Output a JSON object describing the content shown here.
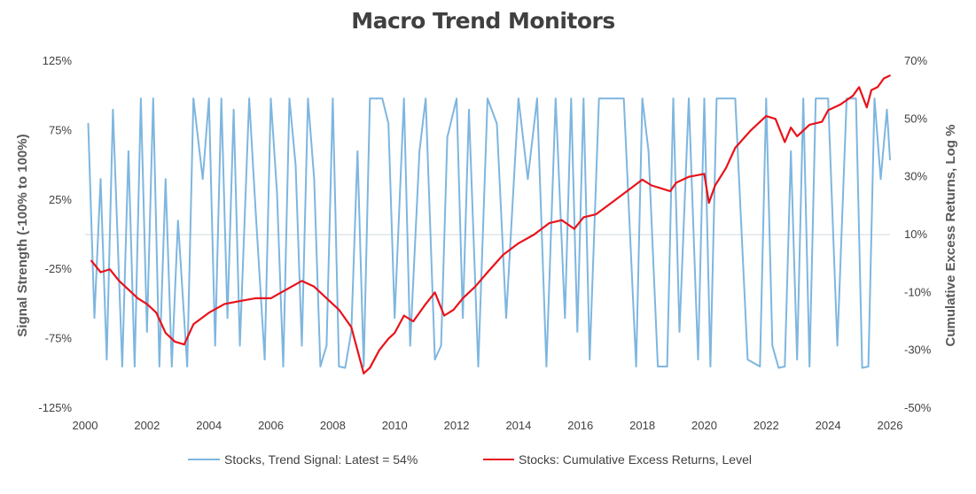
{
  "chart_data": {
    "type": "line",
    "title": "Macro Trend Monitors",
    "left_axis": {
      "label": "Signal Strength (-100% to 100%)",
      "ticks": [
        "125%",
        "75%",
        "25%",
        "-25%",
        "-75%",
        "-125%"
      ],
      "tick_values": [
        125,
        75,
        25,
        -25,
        -75,
        -125
      ],
      "range": [
        -125,
        125
      ]
    },
    "right_axis": {
      "label": "Cumulative Excess Returns, Log %",
      "ticks": [
        "70%",
        "50%",
        "30%",
        "10%",
        "-10%",
        "-30%",
        "-50%"
      ],
      "tick_values": [
        70,
        50,
        30,
        10,
        -10,
        -30,
        -50
      ],
      "range": [
        -50,
        70
      ]
    },
    "x_axis": {
      "ticks": [
        "2000",
        "2002",
        "2004",
        "2006",
        "2008",
        "2010",
        "2012",
        "2014",
        "2016",
        "2018",
        "2020",
        "2022",
        "2024",
        "2026"
      ],
      "tick_values": [
        2000,
        2002,
        2004,
        2006,
        2008,
        2010,
        2012,
        2014,
        2016,
        2018,
        2020,
        2022,
        2024,
        2026
      ],
      "range": [
        2000,
        2026
      ]
    },
    "grid": false,
    "legend_position": "bottom",
    "series": [
      {
        "name": "Stocks, Trend Signal: Latest = 54%",
        "axis": "left",
        "color": "#7EB6DF",
        "x": [
          2000.1,
          2000.3,
          2000.5,
          2000.7,
          2000.9,
          2001.2,
          2001.4,
          2001.6,
          2001.8,
          2002.0,
          2002.2,
          2002.4,
          2002.6,
          2002.8,
          2003.0,
          2003.3,
          2003.5,
          2003.8,
          2004.0,
          2004.2,
          2004.4,
          2004.6,
          2004.8,
          2005.0,
          2005.3,
          2005.5,
          2005.8,
          2006.0,
          2006.2,
          2006.4,
          2006.6,
          2006.8,
          2007.0,
          2007.2,
          2007.4,
          2007.6,
          2007.8,
          2008.0,
          2008.2,
          2008.4,
          2008.6,
          2008.8,
          2009.0,
          2009.2,
          2009.4,
          2009.6,
          2009.8,
          2010.0,
          2010.3,
          2010.5,
          2010.8,
          2011.0,
          2011.3,
          2011.5,
          2011.7,
          2012.0,
          2012.2,
          2012.4,
          2012.7,
          2013.0,
          2013.3,
          2013.6,
          2014.0,
          2014.3,
          2014.6,
          2014.9,
          2015.2,
          2015.5,
          2015.7,
          2015.9,
          2016.1,
          2016.3,
          2016.6,
          2017.0,
          2017.4,
          2017.8,
          2018.0,
          2018.2,
          2018.5,
          2018.8,
          2019.0,
          2019.2,
          2019.5,
          2019.8,
          2020.0,
          2020.2,
          2020.4,
          2020.7,
          2021.0,
          2021.4,
          2021.8,
          2022.0,
          2022.2,
          2022.4,
          2022.6,
          2022.8,
          2023.0,
          2023.2,
          2023.4,
          2023.6,
          2023.8,
          2024.0,
          2024.3,
          2024.6,
          2024.9,
          2025.1,
          2025.3,
          2025.5,
          2025.7,
          2025.9,
          2026.0
        ],
        "values": [
          80,
          -60,
          40,
          -90,
          90,
          -95,
          60,
          -95,
          98,
          -70,
          98,
          -95,
          40,
          -95,
          10,
          -95,
          98,
          40,
          98,
          -80,
          98,
          -60,
          90,
          -80,
          98,
          20,
          -90,
          98,
          30,
          -95,
          98,
          50,
          -80,
          98,
          40,
          -95,
          -80,
          98,
          -95,
          -96,
          -70,
          60,
          -95,
          98,
          98,
          98,
          80,
          -60,
          98,
          -80,
          60,
          98,
          -90,
          -80,
          70,
          98,
          -60,
          90,
          -95,
          98,
          80,
          -60,
          98,
          40,
          98,
          -95,
          98,
          -60,
          98,
          -70,
          98,
          -90,
          98,
          98,
          98,
          -95,
          98,
          60,
          -95,
          -95,
          98,
          -70,
          98,
          -90,
          98,
          -95,
          98,
          98,
          98,
          -90,
          -95,
          98,
          -80,
          -96,
          -95,
          60,
          -90,
          98,
          -95,
          98,
          98,
          98,
          -80,
          98,
          98,
          -96,
          -95,
          98,
          40,
          90,
          54
        ]
      },
      {
        "name": "Stocks:  Cumulative Excess Returns, Level",
        "axis": "right",
        "color": "#E8131B",
        "x": [
          2000.2,
          2000.5,
          2000.8,
          2001.1,
          2001.4,
          2001.7,
          2002.0,
          2002.3,
          2002.6,
          2002.9,
          2003.2,
          2003.5,
          2004.0,
          2004.5,
          2005.0,
          2005.5,
          2006.0,
          2006.5,
          2007.0,
          2007.4,
          2007.8,
          2008.2,
          2008.6,
          2009.0,
          2009.2,
          2009.5,
          2009.8,
          2010.0,
          2010.3,
          2010.6,
          2011.0,
          2011.3,
          2011.6,
          2011.9,
          2012.2,
          2012.6,
          2013.0,
          2013.5,
          2014.0,
          2014.5,
          2015.0,
          2015.4,
          2015.8,
          2016.1,
          2016.5,
          2017.0,
          2017.5,
          2018.0,
          2018.3,
          2018.6,
          2018.9,
          2019.1,
          2019.5,
          2020.0,
          2020.15,
          2020.35,
          2020.7,
          2021.0,
          2021.5,
          2022.0,
          2022.3,
          2022.6,
          2022.8,
          2023.0,
          2023.4,
          2023.8,
          2024.0,
          2024.4,
          2024.8,
          2025.0,
          2025.25,
          2025.4,
          2025.6,
          2025.8,
          2026.0
        ],
        "values": [
          1,
          -3,
          -2,
          -6,
          -9,
          -12,
          -14,
          -17,
          -24,
          -27,
          -28,
          -21,
          -17,
          -14,
          -13,
          -12,
          -12,
          -9,
          -6,
          -8,
          -12,
          -16,
          -22,
          -38,
          -36,
          -30,
          -26,
          -24,
          -18,
          -20,
          -14,
          -10,
          -18,
          -16,
          -12,
          -8,
          -3,
          3,
          7,
          10,
          14,
          15,
          12,
          16,
          17,
          21,
          25,
          29,
          27,
          26,
          25,
          28,
          30,
          31,
          21,
          27,
          33,
          40,
          46,
          51,
          50,
          42,
          47,
          44,
          48,
          49,
          53,
          55,
          58,
          61,
          54,
          60,
          61,
          64,
          65
        ]
      }
    ]
  },
  "legend": [
    {
      "label": "Stocks, Trend Signal: Latest = 54%",
      "color": "#7EB6DF"
    },
    {
      "label": "Stocks:  Cumulative Excess Returns, Level",
      "color": "#E8131B"
    }
  ]
}
